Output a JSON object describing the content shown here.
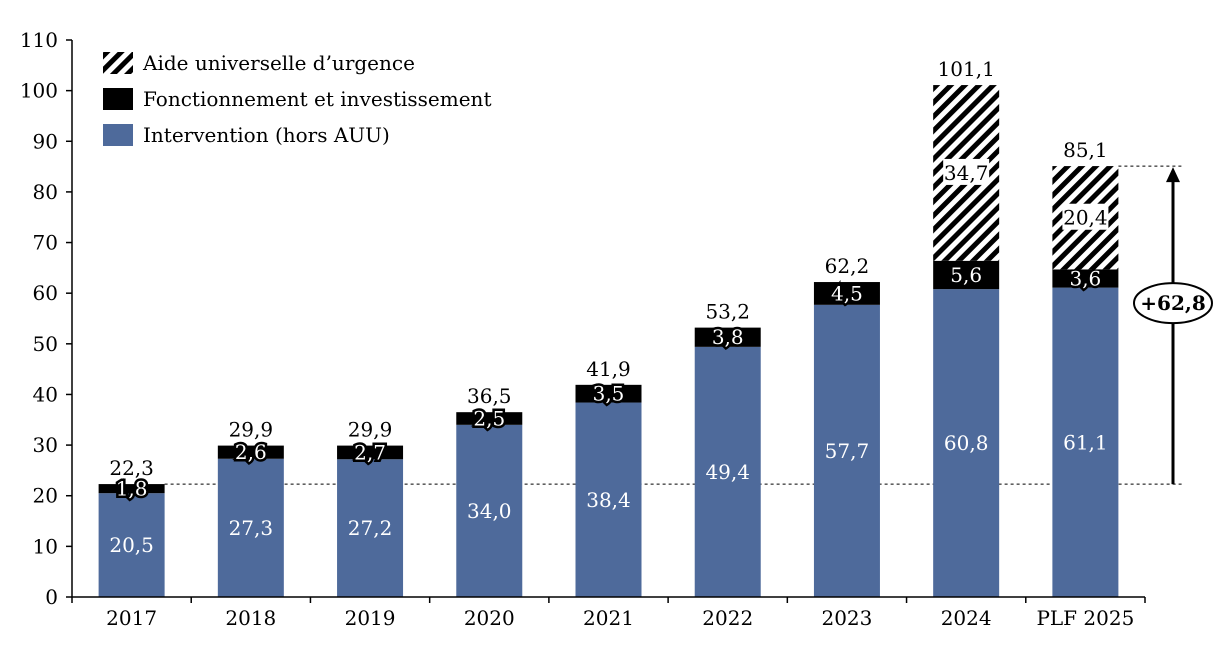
{
  "chart_data": {
    "type": "bar",
    "stacked": true,
    "categories": [
      "2017",
      "2018",
      "2019",
      "2020",
      "2021",
      "2022",
      "2023",
      "2024",
      "PLF 2025"
    ],
    "series": [
      {
        "name": "Intervention (hors AUU)",
        "color": "#4e6a9b",
        "pattern": "solid",
        "values": [
          20.5,
          27.3,
          27.2,
          34.0,
          38.4,
          49.4,
          57.7,
          60.8,
          61.1
        ],
        "labels": [
          "20,5",
          "27,3",
          "27,2",
          "34,0",
          "38,4",
          "49,4",
          "57,7",
          "60,8",
          "61,1"
        ]
      },
      {
        "name": "Fonctionnement et investissement",
        "color": "#000000",
        "pattern": "solid",
        "values": [
          1.8,
          2.6,
          2.7,
          2.5,
          3.5,
          3.8,
          4.5,
          5.6,
          3.6
        ],
        "labels": [
          "1,8",
          "2,6",
          "2,7",
          "2,5",
          "3,5",
          "3,8",
          "4,5",
          "5,6",
          "3,6"
        ]
      },
      {
        "name": "Aide universelle d’urgence",
        "color": "#000000",
        "pattern": "diagonal-hatch",
        "values": [
          0,
          0,
          0,
          0,
          0,
          0,
          0,
          34.7,
          20.4
        ],
        "labels": [
          "",
          "",
          "",
          "",
          "",
          "",
          "",
          "34,7",
          "20,4"
        ]
      }
    ],
    "totals": [
      22.3,
      29.9,
      29.9,
      36.5,
      41.9,
      53.2,
      62.2,
      101.1,
      85.1
    ],
    "total_labels": [
      "22,3",
      "29,9",
      "29,9",
      "36,5",
      "41,9",
      "53,2",
      "62,2",
      "101,1",
      "85,1"
    ],
    "ylim": [
      0,
      110
    ],
    "yticks": [
      0,
      10,
      20,
      30,
      40,
      50,
      60,
      70,
      80,
      90,
      100,
      110
    ],
    "legend": {
      "placement": "top-left",
      "order": [
        2,
        1,
        0
      ]
    },
    "annotation": {
      "text": "+62,8",
      "from_value": 22.3,
      "to_value": 85.1
    },
    "xlabel": "",
    "ylabel": "",
    "title": ""
  }
}
